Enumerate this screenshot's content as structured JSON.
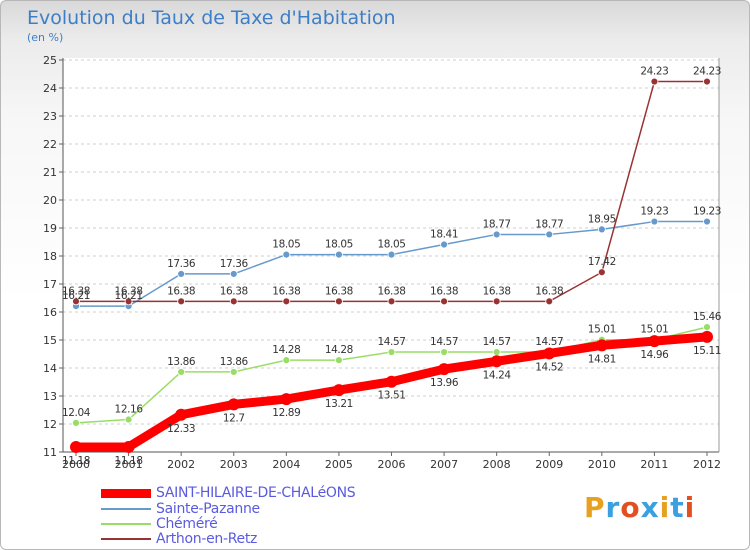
{
  "header": {
    "title": "Evolution du Taux de Taxe d'Habitation",
    "subtitle": "(en %)"
  },
  "logo": {
    "text": "Proxiti",
    "colors": [
      "#e8a020",
      "#3aa0e0",
      "#e05020",
      "#3aa0e0",
      "#e8a020",
      "#3aa0e0",
      "#e05020"
    ]
  },
  "chart_data": {
    "type": "line",
    "title": "Evolution du Taux de Taxe d'Habitation",
    "subtitle": "(en %)",
    "xlabel": "",
    "ylabel": "",
    "x": [
      "2000",
      "2001",
      "2002",
      "2003",
      "2004",
      "2005",
      "2006",
      "2007",
      "2008",
      "2009",
      "2010",
      "2011",
      "2012"
    ],
    "ylim": [
      11,
      25
    ],
    "yticks": [
      "11",
      "12",
      "13",
      "14",
      "15",
      "16",
      "17",
      "18",
      "19",
      "20",
      "21",
      "22",
      "23",
      "24",
      "25"
    ],
    "grid": "dashed horizontal",
    "legend_position": "bottom-left",
    "series": [
      {
        "name": "SAINT-HILAIRE-DE-CHALéONS",
        "color": "#ff0000",
        "values": [
          11.18,
          11.18,
          12.33,
          12.7,
          12.89,
          13.21,
          13.51,
          13.96,
          14.24,
          14.52,
          14.81,
          14.96,
          15.11
        ],
        "labels": [
          "11.18",
          "11.18",
          "12.33",
          "12.7",
          "12.89",
          "13.21",
          "13.51",
          "13.96",
          "14.24",
          "14.52",
          "14.81",
          "14.96",
          "15.11"
        ]
      },
      {
        "name": "Sainte-Pazanne",
        "color": "#6699cc",
        "values": [
          16.21,
          16.21,
          17.36,
          17.36,
          18.05,
          18.05,
          18.05,
          18.41,
          18.77,
          18.77,
          18.95,
          19.23,
          19.23
        ],
        "labels": [
          "16.21",
          "16.21",
          "17.36",
          "17.36",
          "18.05",
          "18.05",
          "18.05",
          "18.41",
          "18.77",
          "18.77",
          "18.95",
          "19.23",
          "19.23"
        ]
      },
      {
        "name": "Chéméré",
        "color": "#99dd66",
        "values": [
          12.04,
          12.16,
          13.86,
          13.86,
          14.28,
          14.28,
          14.57,
          14.57,
          14.57,
          14.57,
          15.01,
          15.01,
          15.46
        ],
        "labels": [
          "12.04",
          "12.16",
          "13.86",
          "13.86",
          "14.28",
          "14.28",
          "14.57",
          "14.57",
          "14.57",
          "14.57",
          "15.01",
          "15.01",
          "15.46"
        ]
      },
      {
        "name": "Arthon-en-Retz",
        "color": "#993333",
        "values": [
          16.38,
          16.38,
          16.38,
          16.38,
          16.38,
          16.38,
          16.38,
          16.38,
          16.38,
          16.38,
          17.42,
          24.23,
          24.23
        ],
        "labels": [
          "16.38",
          "16.38",
          "16.38",
          "16.38",
          "16.38",
          "16.38",
          "16.38",
          "16.38",
          "16.38",
          "16.38",
          "17.42",
          "24.23",
          "24.23"
        ]
      }
    ]
  }
}
